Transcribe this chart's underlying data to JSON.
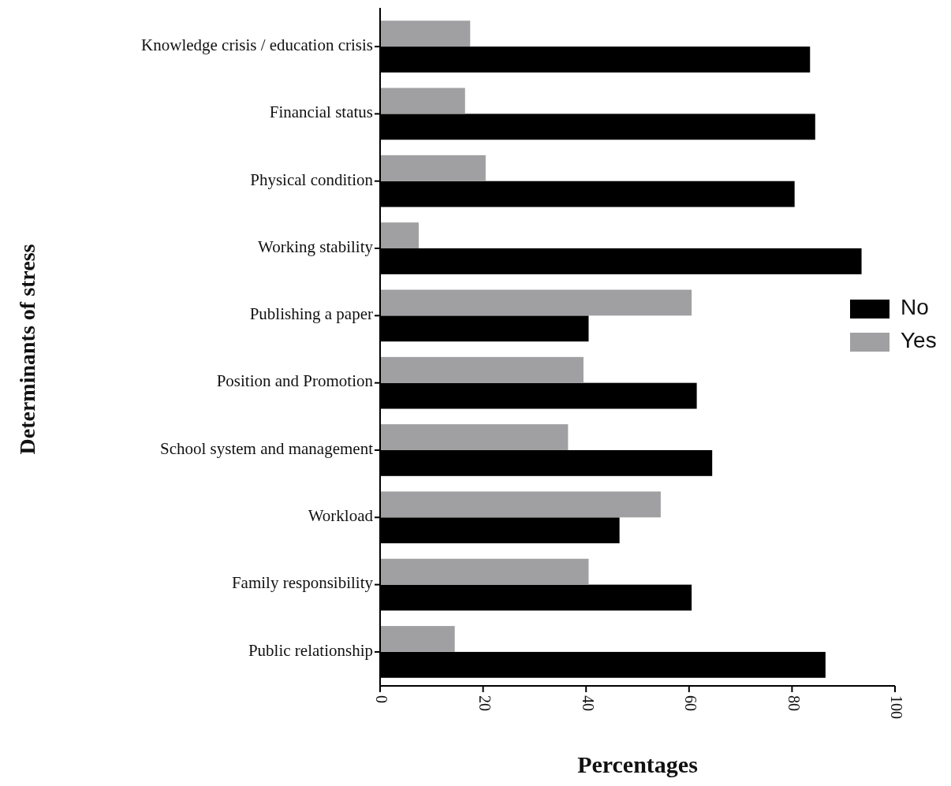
{
  "chart_data": {
    "type": "bar",
    "orientation": "horizontal",
    "xlabel": "Percentages",
    "ylabel": "Determinants of stress",
    "categories": [
      "Knowledge crisis / education crisis",
      "Financial status",
      "Physical condition",
      "Working stability",
      "Publishing a paper",
      "Position and Promotion",
      "School system and management",
      "Workload",
      "Family responsibility",
      "Public relationship"
    ],
    "series": [
      {
        "name": "No",
        "color": "#000000",
        "values": [
          83.5,
          84.5,
          80.5,
          93.5,
          40.5,
          61.5,
          64.5,
          46.5,
          60.5,
          86.5
        ]
      },
      {
        "name": "Yes",
        "color": "#a0a0a3",
        "values": [
          17.5,
          16.5,
          20.5,
          7.5,
          60.5,
          39.5,
          36.5,
          54.5,
          40.5,
          14.5
        ]
      }
    ],
    "xlim": [
      0,
      100
    ],
    "xticks": [
      0,
      20,
      40,
      60,
      80,
      100
    ],
    "legend": "right",
    "grid": false
  }
}
